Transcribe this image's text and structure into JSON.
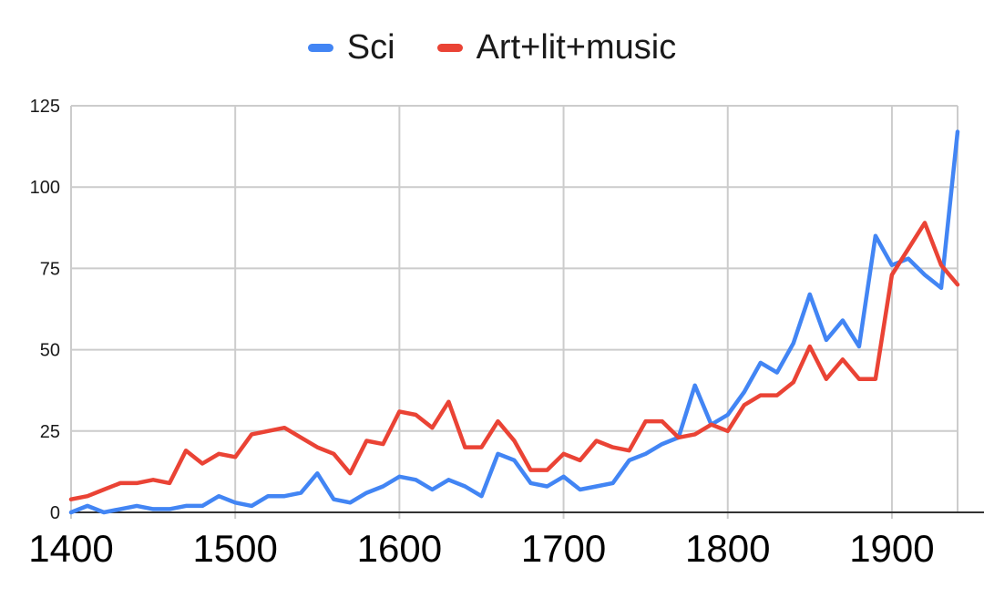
{
  "chart_data": {
    "type": "line",
    "title": "",
    "xlabel": "",
    "ylabel": "",
    "x": [
      1400,
      1410,
      1420,
      1430,
      1440,
      1450,
      1460,
      1470,
      1480,
      1490,
      1500,
      1510,
      1520,
      1530,
      1540,
      1550,
      1560,
      1570,
      1580,
      1590,
      1600,
      1610,
      1620,
      1630,
      1640,
      1650,
      1660,
      1670,
      1680,
      1690,
      1700,
      1710,
      1720,
      1730,
      1740,
      1750,
      1760,
      1770,
      1780,
      1790,
      1800,
      1810,
      1820,
      1830,
      1840,
      1850,
      1860,
      1870,
      1880,
      1890,
      1900,
      1910,
      1920,
      1930,
      1940
    ],
    "series": [
      {
        "name": "Sci",
        "color": "#4285F4",
        "values": [
          0,
          2,
          0,
          1,
          2,
          1,
          1,
          2,
          2,
          5,
          3,
          2,
          5,
          5,
          6,
          12,
          4,
          3,
          6,
          8,
          11,
          10,
          7,
          10,
          8,
          5,
          18,
          16,
          9,
          8,
          11,
          7,
          8,
          9,
          16,
          18,
          21,
          23,
          39,
          27,
          30,
          37,
          46,
          43,
          52,
          67,
          53,
          59,
          51,
          85,
          76,
          78,
          73,
          69,
          117
        ]
      },
      {
        "name": "Art+lit+music",
        "color": "#EA4335",
        "values": [
          4,
          5,
          7,
          9,
          9,
          10,
          9,
          19,
          15,
          18,
          17,
          24,
          25,
          26,
          23,
          20,
          18,
          12,
          22,
          21,
          31,
          30,
          26,
          34,
          20,
          20,
          28,
          22,
          13,
          13,
          18,
          16,
          22,
          20,
          19,
          28,
          28,
          23,
          24,
          27,
          25,
          33,
          36,
          36,
          40,
          51,
          41,
          47,
          41,
          41,
          73,
          81,
          89,
          76,
          70
        ]
      }
    ],
    "xlim": [
      1400,
      1940
    ],
    "ylim": [
      0,
      125
    ],
    "x_ticks": [
      1400,
      1500,
      1600,
      1700,
      1800,
      1900
    ],
    "y_ticks": [
      0,
      25,
      50,
      75,
      100,
      125
    ],
    "grid": true,
    "legend_position": "top",
    "colors": {
      "grid": "#cccccc",
      "axis": "#333333",
      "x_label": "#000000",
      "y_label": "#1a1a1a",
      "background": "#ffffff"
    }
  }
}
